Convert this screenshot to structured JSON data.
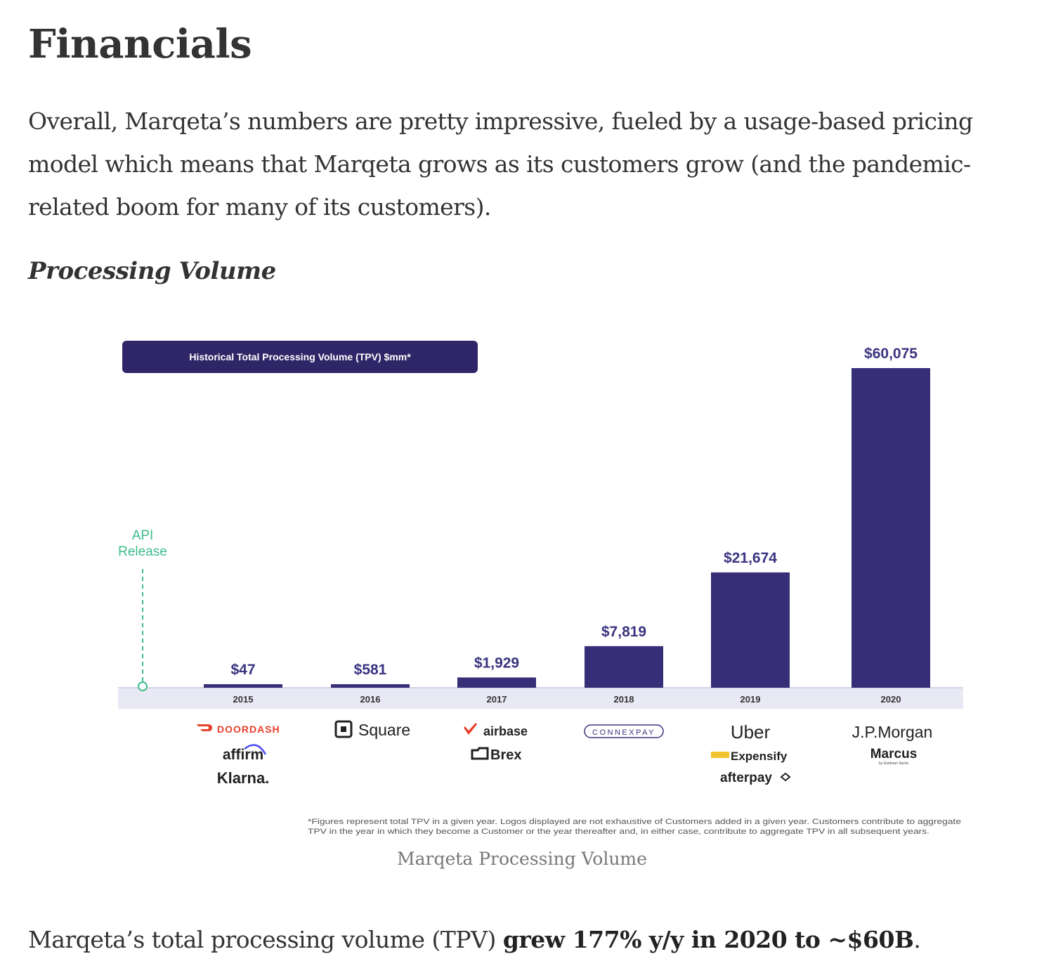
{
  "article": {
    "heading": "Financials",
    "intro": "Overall, Marqeta’s numbers are pretty impressive, fueled by a usage-based pricing model which means that Marqeta grows as its customers grow (and the pandemic-related boom for many of its customers).",
    "subheading": "Processing Volume",
    "caption": "Marqeta Processing Volume",
    "summary_prefix": "Marqeta’s total processing volume (TPV) ",
    "summary_bold": "grew 177% y/y in 2020 to ~$60B",
    "summary_suffix": "."
  },
  "chart_data": {
    "type": "bar",
    "title": "Historical Total Processing Volume (TPV) $mm*",
    "categories": [
      "2015",
      "2016",
      "2017",
      "2018",
      "2019",
      "2020"
    ],
    "values": [
      47,
      581,
      1929,
      7819,
      21674,
      60075
    ],
    "value_labels": [
      "$47",
      "$581",
      "$1,929",
      "$7,819",
      "$21,674",
      "$60,075"
    ],
    "annotation": {
      "line1": "API",
      "line2": "Release"
    },
    "customers": [
      [
        "DOORDASH",
        "affirm",
        "Klarna."
      ],
      [
        "Square"
      ],
      [
        "airbase",
        "Brex"
      ],
      [
        "CONNEXPAY"
      ],
      [
        "Uber",
        "Expensify",
        "afterpay"
      ],
      [
        "J.P.Morgan",
        "Marcus"
      ]
    ],
    "marcus_tagline": "by Goldman Sachs",
    "footnote_line1": "*Figures represent total TPV in a given year. Logos displayed are not exhaustive of Customers added in a given year. Customers contribute to aggregate",
    "footnote_line2": "TPV in the year in which they become a Customer or the year thereafter and, in either case, contribute to aggregate TPV in all subsequent years.",
    "ylim": [
      0,
      60075
    ],
    "colors": {
      "bar": "#372e78",
      "title_bg": "#2f2667",
      "api": "#3dbd8b",
      "axis_band": "#e8e9f4",
      "value_text": "#3b3480"
    }
  }
}
